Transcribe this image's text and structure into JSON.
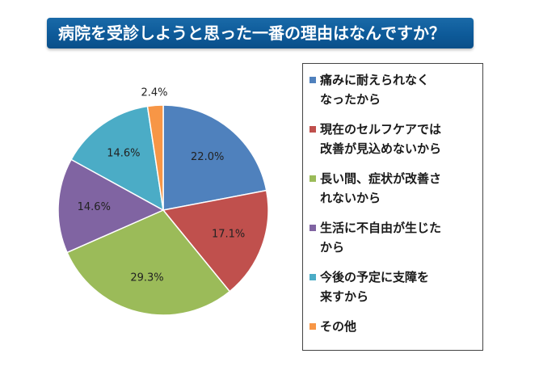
{
  "title": "病院を受診しようと思った一番の理由はなんですか？",
  "chart_data": {
    "type": "pie",
    "categories": [
      "痛みに耐えられなくなったから",
      "現在のセルフケアでは改善が見込めないから",
      "長い間、症状が改善されないから",
      "生活に不自由が生じたから",
      "今後の予定に支障を来すから",
      "その他"
    ],
    "values": [
      22.0,
      17.1,
      29.3,
      14.6,
      14.6,
      2.4
    ],
    "value_labels": [
      "22.0%",
      "17.1%",
      "29.3%",
      "14.6%",
      "14.6%",
      "2.4%"
    ],
    "colors": [
      "#4F81BD",
      "#C0504D",
      "#9BBB59",
      "#8064A2",
      "#4BACC6",
      "#F79646"
    ],
    "legend_position": "right",
    "start_angle_deg": 0,
    "direction": "clockwise"
  },
  "legend": [
    {
      "lines": [
        "痛みに耐えられなく",
        "なったから"
      ]
    },
    {
      "lines": [
        "現在のセルフケアでは",
        "改善が見込めないから"
      ]
    },
    {
      "lines": [
        "長い間、症状が改善さ",
        "れないから"
      ]
    },
    {
      "lines": [
        "生活に不自由が生じた",
        "から"
      ]
    },
    {
      "lines": [
        "今後の予定に支障を",
        "来すから"
      ]
    },
    {
      "lines": [
        "その他"
      ]
    }
  ]
}
